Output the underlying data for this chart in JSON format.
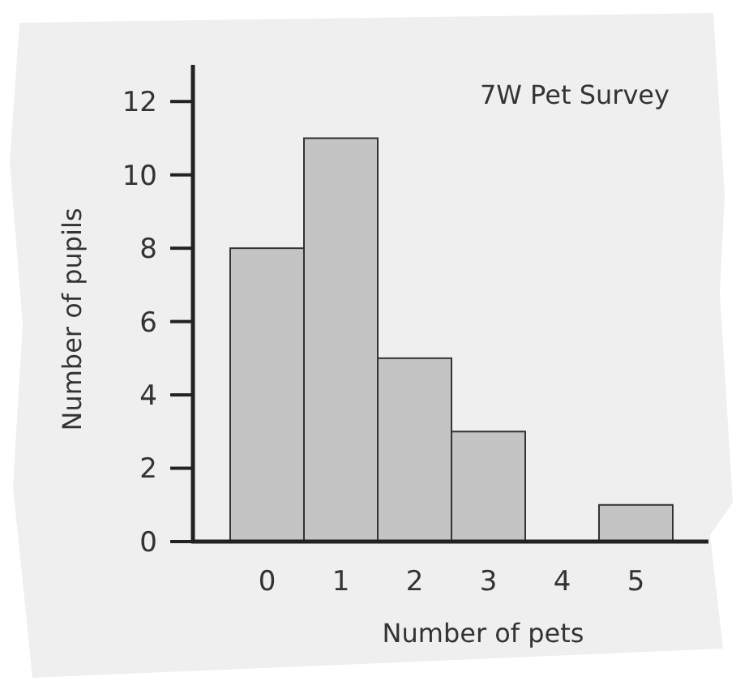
{
  "chart_data": {
    "type": "bar",
    "title": "7W Pet Survey",
    "xlabel": "Number of pets",
    "ylabel": "Number of pupils",
    "categories": [
      "0",
      "1",
      "2",
      "3",
      "4",
      "5"
    ],
    "values": [
      8,
      11,
      5,
      3,
      0,
      1
    ],
    "color": "#c4c4c4",
    "ylim": [
      0,
      13
    ],
    "yticks": [
      0,
      2,
      4,
      6,
      8,
      10,
      12
    ],
    "grid": false
  }
}
